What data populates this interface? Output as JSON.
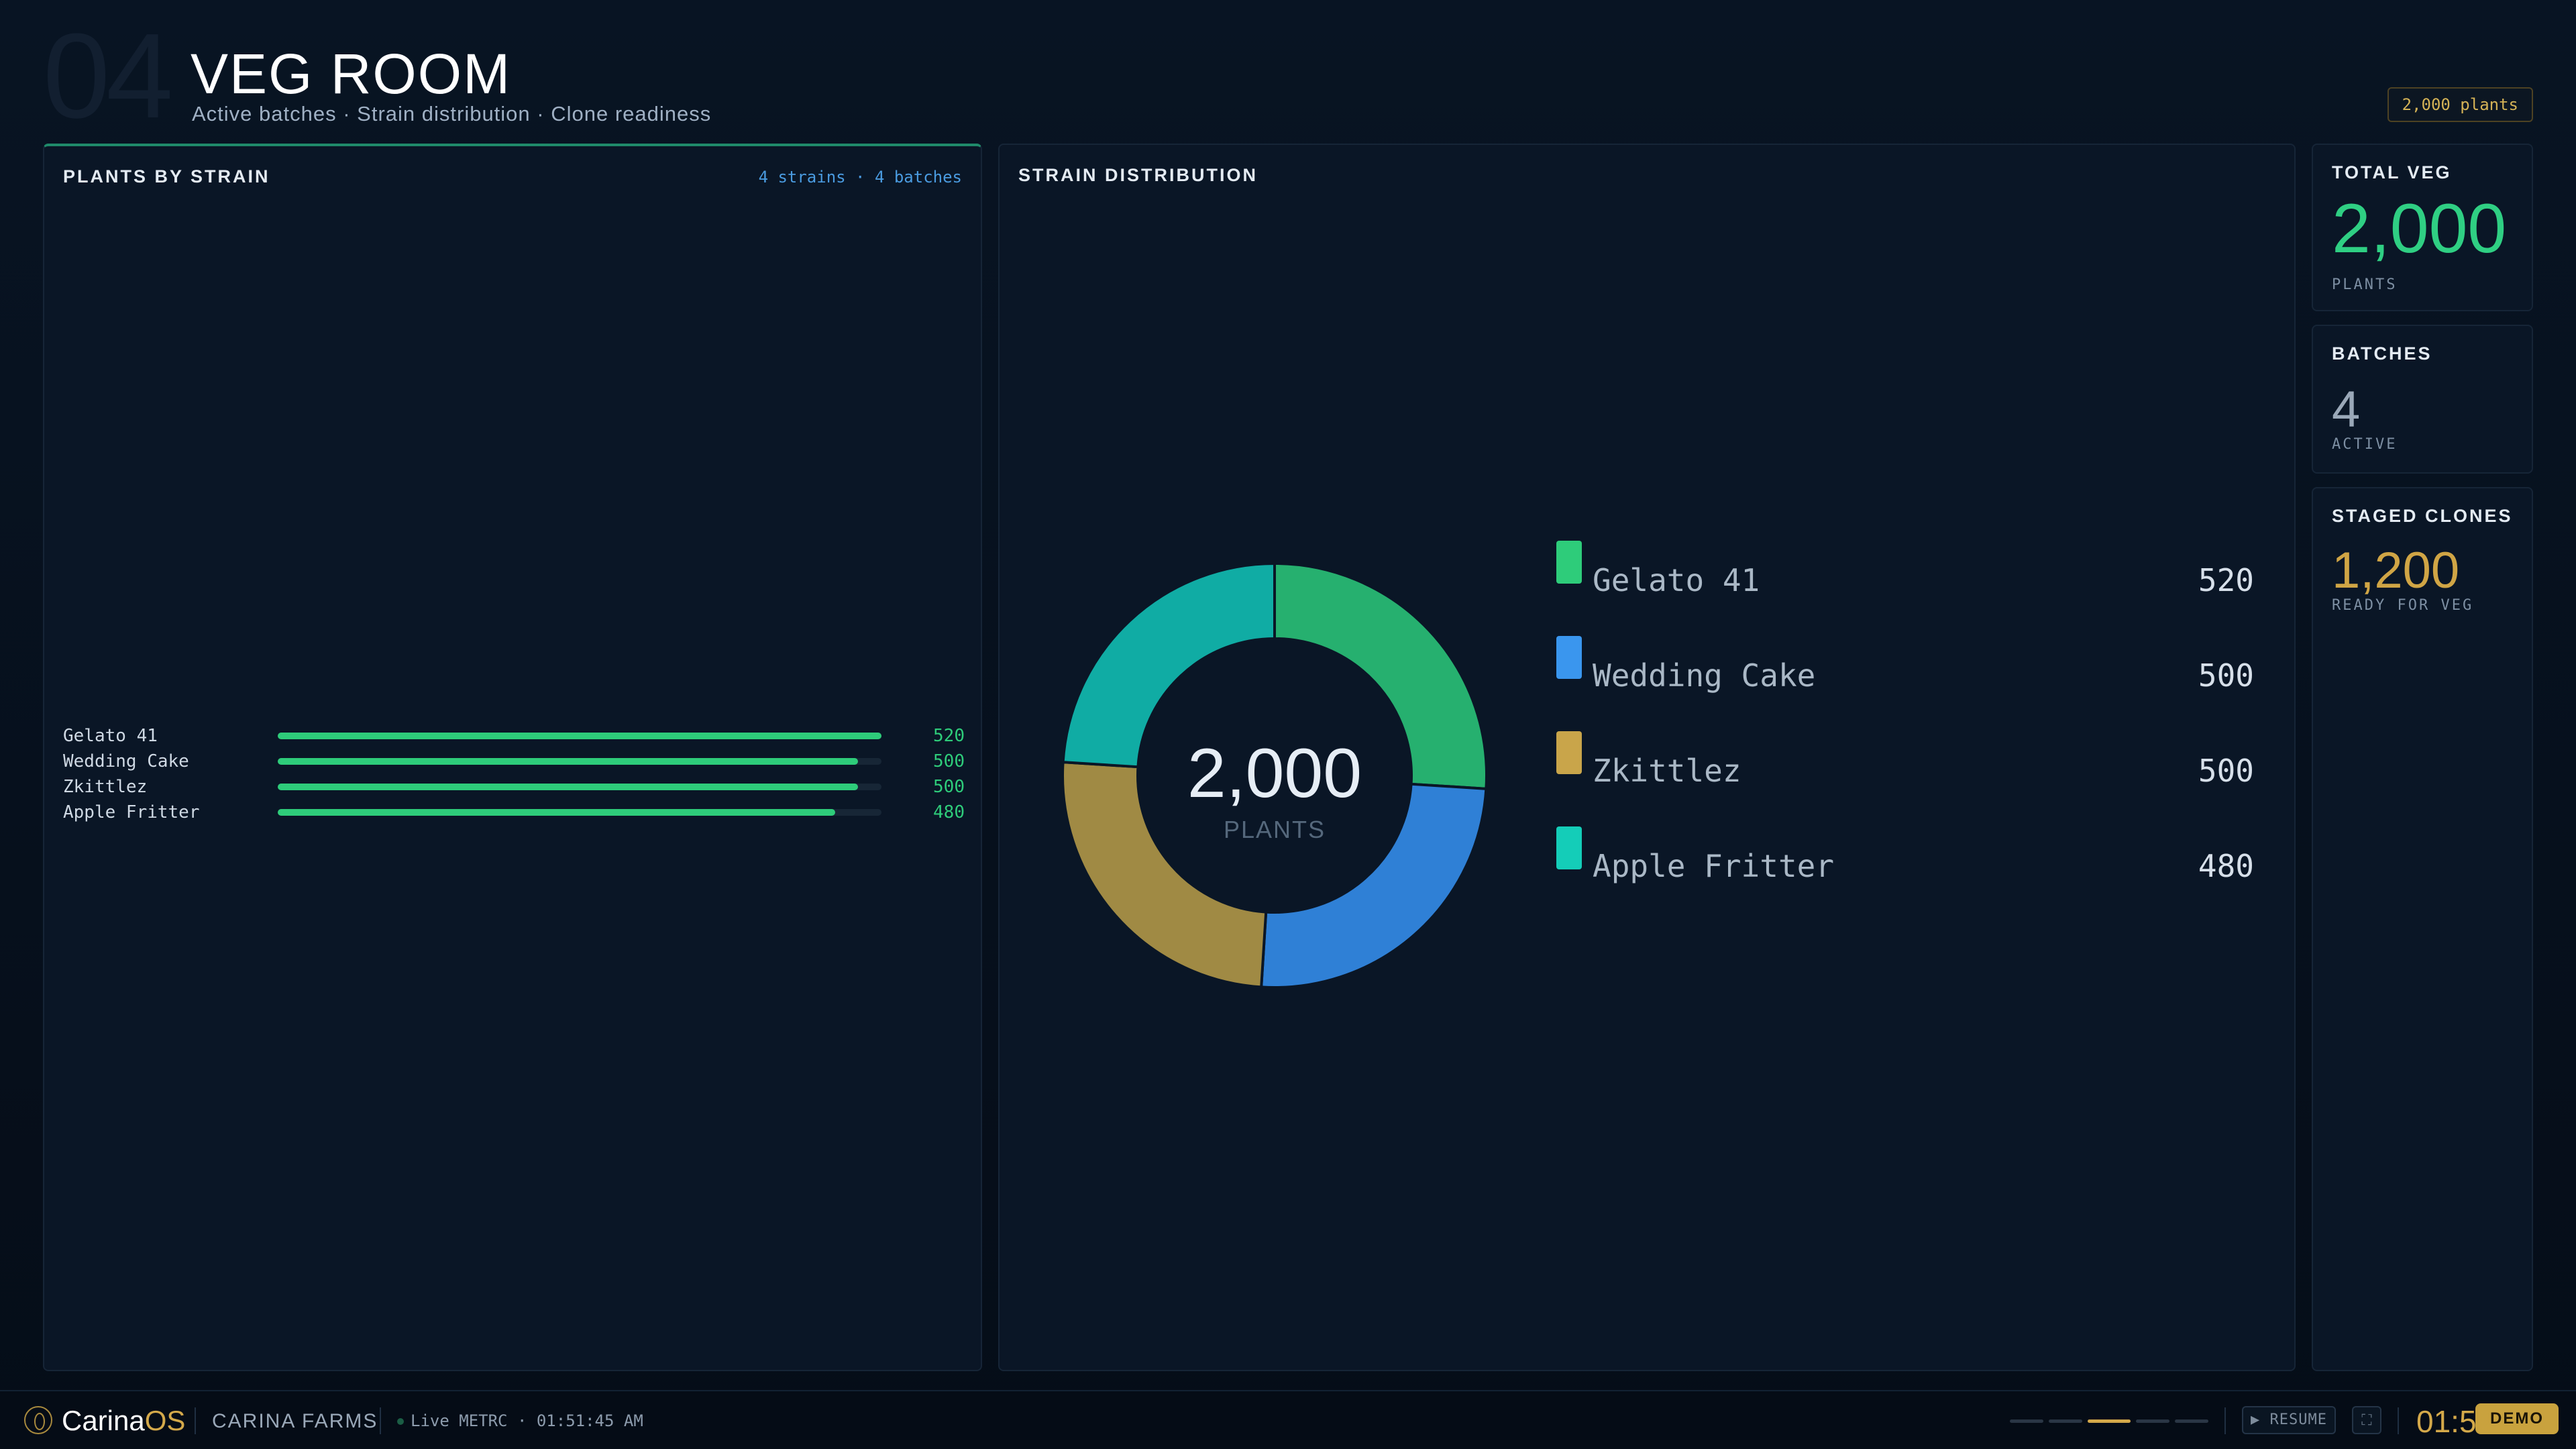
{
  "header": {
    "page_number": "04",
    "title": "VEG ROOM",
    "subtitle": "Active batches · Strain distribution · Clone readiness",
    "plant_count_badge": "2,000 plants"
  },
  "plants_by_strain": {
    "title": "PLANTS BY STRAIN",
    "meta": "4 strains · 4 batches",
    "bar_color": "#2ecc7a"
  },
  "strain_distribution": {
    "title": "STRAIN DISTRIBUTION",
    "center_value": "2,000",
    "center_label": "PLANTS"
  },
  "chart_data": {
    "type": "pie",
    "categories": [
      "Gelato 41",
      "Wedding Cake",
      "Zkittlez",
      "Apple Fritter"
    ],
    "values": [
      520,
      500,
      500,
      480
    ],
    "value_labels": [
      "520",
      "500",
      "500",
      "480"
    ],
    "colors": [
      "#2ecc7a",
      "#3a96ee",
      "#c9a54a",
      "#14cdb8"
    ],
    "slice_colors": [
      "#26b06f",
      "#2f80d6",
      "#a08a44",
      "#10aca4"
    ],
    "bar_max": 520
  },
  "stats": {
    "total_veg": {
      "title": "TOTAL VEG",
      "value": "2,000",
      "label": "PLANTS"
    },
    "batches": {
      "title": "BATCHES",
      "value": "4",
      "label": "ACTIVE"
    },
    "staged_clones": {
      "title": "STAGED CLONES",
      "value": "1,200",
      "label": "READY FOR VEG"
    }
  },
  "footer": {
    "brand_main": "Carina",
    "brand_suffix": "OS",
    "company": "CARINA FARMS",
    "live_status": "Live METRC · 01:51:45 AM",
    "resume_label": "▶ RESUME",
    "fullscreen_icon": "⛶",
    "clock": "01:5",
    "demo_label": "DEMO",
    "pager": {
      "total": 5,
      "active": 3
    }
  }
}
